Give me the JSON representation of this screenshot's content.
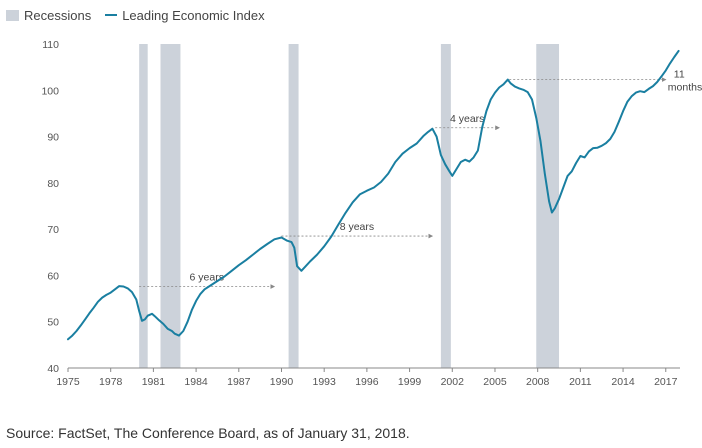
{
  "legend": {
    "recessions_label": "Recessions",
    "lei_label": "Leading Economic Index"
  },
  "source_note": "Source: FactSet, The Conference Board, as of January 31, 2018.",
  "colors": {
    "line": "#1a7fa1",
    "recession": "#ccd2da",
    "axis": "#888888",
    "annotation": "#888888"
  },
  "chart_data": {
    "type": "line",
    "title": "",
    "xlabel": "",
    "ylabel": "",
    "xlim": [
      1975,
      2018
    ],
    "ylim": [
      40,
      110
    ],
    "x_ticks": [
      1975,
      1978,
      1981,
      1984,
      1987,
      1990,
      1993,
      1996,
      1999,
      2002,
      2005,
      2008,
      2011,
      2014,
      2017
    ],
    "y_ticks": [
      40,
      50,
      60,
      70,
      80,
      90,
      100,
      110
    ],
    "grid": false,
    "legend_placement": "top-left",
    "recessions": [
      {
        "start": 1980.0,
        "end": 1980.6
      },
      {
        "start": 1981.5,
        "end": 1982.9
      },
      {
        "start": 1990.5,
        "end": 1991.2
      },
      {
        "start": 2001.2,
        "end": 2001.9
      },
      {
        "start": 2007.9,
        "end": 2009.5
      }
    ],
    "series": [
      {
        "name": "Leading Economic Index",
        "x": [
          1975.0,
          1975.3,
          1975.6,
          1975.9,
          1976.2,
          1976.5,
          1976.8,
          1977.1,
          1977.4,
          1977.7,
          1978.0,
          1978.3,
          1978.6,
          1978.9,
          1979.2,
          1979.5,
          1979.8,
          1980.0,
          1980.2,
          1980.4,
          1980.6,
          1980.9,
          1981.1,
          1981.4,
          1981.7,
          1982.0,
          1982.3,
          1982.5,
          1982.8,
          1983.1,
          1983.4,
          1983.7,
          1984.0,
          1984.3,
          1984.6,
          1985.0,
          1985.5,
          1986.0,
          1986.5,
          1987.0,
          1987.5,
          1988.0,
          1988.5,
          1989.0,
          1989.5,
          1990.0,
          1990.4,
          1990.7,
          1990.9,
          1991.1,
          1991.4,
          1991.7,
          1992.0,
          1992.5,
          1993.0,
          1993.5,
          1994.0,
          1994.5,
          1995.0,
          1995.5,
          1996.0,
          1996.5,
          1997.0,
          1997.5,
          1998.0,
          1998.5,
          1999.0,
          1999.5,
          2000.0,
          2000.3,
          2000.6,
          2000.9,
          2001.2,
          2001.5,
          2001.8,
          2002.0,
          2002.3,
          2002.6,
          2002.9,
          2003.2,
          2003.5,
          2003.8,
          2004.1,
          2004.4,
          2004.7,
          2005.0,
          2005.3,
          2005.6,
          2005.9,
          2006.1,
          2006.4,
          2006.7,
          2007.0,
          2007.3,
          2007.6,
          2007.9,
          2008.2,
          2008.5,
          2008.8,
          2009.0,
          2009.2,
          2009.5,
          2009.8,
          2010.1,
          2010.4,
          2010.7,
          2011.0,
          2011.3,
          2011.6,
          2011.9,
          2012.2,
          2012.5,
          2012.8,
          2013.1,
          2013.4,
          2013.7,
          2014.0,
          2014.3,
          2014.6,
          2014.9,
          2015.2,
          2015.5,
          2015.8,
          2016.1,
          2016.4,
          2016.7,
          2017.0,
          2017.3,
          2017.6,
          2017.9
        ],
        "values": [
          46.2,
          47.0,
          48.0,
          49.2,
          50.5,
          51.8,
          53.0,
          54.3,
          55.2,
          55.8,
          56.3,
          57.0,
          57.7,
          57.6,
          57.2,
          56.4,
          54.8,
          52.3,
          50.2,
          50.5,
          51.3,
          51.7,
          51.2,
          50.3,
          49.5,
          48.5,
          48.0,
          47.4,
          47.0,
          48.0,
          50.0,
          52.5,
          54.5,
          56.0,
          57.0,
          57.8,
          58.8,
          59.8,
          61.0,
          62.2,
          63.3,
          64.5,
          65.7,
          66.8,
          67.8,
          68.2,
          67.5,
          67.2,
          66.0,
          62.0,
          61.0,
          62.0,
          63.0,
          64.5,
          66.3,
          68.4,
          71.0,
          73.5,
          75.8,
          77.5,
          78.3,
          79.0,
          80.2,
          82.0,
          84.5,
          86.3,
          87.5,
          88.5,
          90.2,
          91.0,
          91.7,
          90.0,
          86.0,
          84.0,
          82.5,
          81.5,
          83.0,
          84.5,
          85.0,
          84.6,
          85.5,
          87.0,
          92.0,
          95.5,
          98.0,
          99.5,
          100.6,
          101.3,
          102.3,
          101.5,
          100.8,
          100.4,
          100.1,
          99.6,
          98.0,
          94.0,
          89.0,
          82.0,
          76.0,
          73.6,
          74.5,
          76.5,
          79.0,
          81.5,
          82.5,
          84.3,
          85.8,
          85.5,
          86.8,
          87.5,
          87.6,
          88.0,
          88.6,
          89.5,
          91.0,
          93.2,
          95.5,
          97.5,
          98.7,
          99.5,
          99.8,
          99.6,
          100.3,
          100.9,
          101.8,
          103.0,
          104.3,
          105.8,
          107.2,
          108.5
        ]
      }
    ],
    "annotations": [
      {
        "label": "6 years",
        "from_x": 1980.0,
        "to_x": 1989.5,
        "y": 57.6
      },
      {
        "label": "8 years",
        "from_x": 1990.0,
        "to_x": 2000.6,
        "y": 68.5
      },
      {
        "label": "4 years",
        "from_x": 2000.8,
        "to_x": 2005.3,
        "y": 91.9
      },
      {
        "label": "11 months",
        "from_x": 2006.0,
        "to_x": 2017.0,
        "y": 102.3
      }
    ]
  }
}
